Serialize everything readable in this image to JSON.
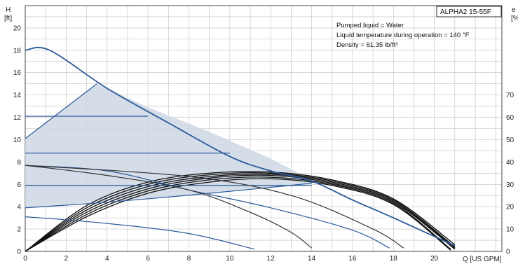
{
  "chart_data": {
    "type": "line",
    "model": "ALPHA2 15-55F",
    "notes": [
      "Pumped liquid = Water",
      "Liquid temperature during operation = 140 °F",
      "Density = 61.35 lb/ft³"
    ],
    "y_left": {
      "label_top": "H",
      "label_unit": "[ft]",
      "range": [
        0,
        22
      ],
      "ticks": [
        0,
        2,
        4,
        6,
        8,
        10,
        12,
        14,
        16,
        18,
        20
      ]
    },
    "y_right": {
      "label_top": "e",
      "label_unit": "[%]",
      "range": [
        0,
        110
      ],
      "ticks": [
        0,
        10,
        20,
        30,
        40,
        50,
        60,
        70
      ]
    },
    "x": {
      "label": "Q [US GPM]",
      "range": [
        0,
        23.3
      ],
      "ticks": [
        0,
        2,
        4,
        6,
        8,
        10,
        12,
        14,
        16,
        18,
        20
      ]
    },
    "grid": true,
    "shaded_region": [
      [
        0,
        10.1
      ],
      [
        3.5,
        15.0
      ],
      [
        6,
        12.9
      ],
      [
        9,
        10.7
      ],
      [
        12,
        8.3
      ],
      [
        14,
        6.4
      ],
      [
        14,
        6.0
      ],
      [
        9,
        5.2
      ],
      [
        4,
        4.5
      ],
      [
        0,
        3.9
      ]
    ],
    "head_curves": [
      {
        "points": [
          [
            0,
            18.0
          ],
          [
            1.2,
            18.0
          ],
          [
            4,
            14.6
          ],
          [
            7,
            11.5
          ],
          [
            10,
            8.5
          ],
          [
            12,
            7.2
          ],
          [
            14,
            6.3
          ],
          [
            16,
            4.6
          ],
          [
            18,
            3.0
          ],
          [
            21,
            0.5
          ]
        ]
      },
      {
        "points": [
          [
            0,
            10.1
          ],
          [
            3.5,
            15.0
          ]
        ]
      },
      {
        "points": [
          [
            0,
            7.7
          ],
          [
            4,
            7.2
          ],
          [
            8,
            5.5
          ],
          [
            12,
            3.9
          ],
          [
            16,
            1.9
          ],
          [
            17.8,
            0.3
          ]
        ]
      },
      {
        "points": [
          [
            0,
            3.1
          ],
          [
            4,
            2.5
          ],
          [
            8,
            1.6
          ],
          [
            11.2,
            0.2
          ]
        ]
      },
      {
        "points": [
          [
            0,
            12.1
          ],
          [
            6,
            12.1
          ]
        ]
      },
      {
        "points": [
          [
            0,
            8.8
          ],
          [
            10,
            8.8
          ]
        ]
      },
      {
        "points": [
          [
            0,
            5.9
          ],
          [
            14,
            5.9
          ]
        ]
      },
      {
        "points": [
          [
            0,
            3.9
          ],
          [
            4,
            4.4
          ],
          [
            9,
            5.2
          ],
          [
            14,
            6.1
          ]
        ]
      },
      {
        "points": [
          [
            0,
            7.7
          ],
          [
            4,
            6.8
          ],
          [
            8,
            5.5
          ],
          [
            11,
            3.5
          ],
          [
            13,
            1.7
          ],
          [
            14,
            0.3
          ]
        ]
      },
      {
        "points": [
          [
            0,
            7.7
          ],
          [
            8,
            6.7
          ],
          [
            13,
            5.0
          ],
          [
            17,
            2.0
          ],
          [
            18.5,
            0.3
          ]
        ]
      }
    ],
    "efficiency_curves": [
      {
        "points": [
          [
            0,
            0
          ],
          [
            3,
            20.5
          ],
          [
            6,
            31
          ],
          [
            9,
            35
          ],
          [
            12,
            35.5
          ],
          [
            15,
            32
          ],
          [
            18,
            23.5
          ],
          [
            21,
            3
          ]
        ]
      },
      {
        "points": [
          [
            0,
            0
          ],
          [
            3,
            19.5
          ],
          [
            6,
            30
          ],
          [
            9,
            34.3
          ],
          [
            12,
            35.0
          ],
          [
            15,
            31.5
          ],
          [
            18,
            23
          ],
          [
            21,
            2
          ]
        ]
      },
      {
        "points": [
          [
            0,
            0
          ],
          [
            3,
            18.5
          ],
          [
            6,
            29
          ],
          [
            9,
            33.5
          ],
          [
            12,
            34.5
          ],
          [
            15,
            31
          ],
          [
            18,
            22.5
          ],
          [
            21,
            1.5
          ]
        ]
      },
      {
        "points": [
          [
            0,
            0
          ],
          [
            3,
            17.5
          ],
          [
            6,
            28
          ],
          [
            9,
            32.8
          ],
          [
            12,
            34.0
          ],
          [
            15,
            30.5
          ],
          [
            18,
            22
          ],
          [
            21,
            1
          ]
        ]
      },
      {
        "points": [
          [
            0,
            0
          ],
          [
            3,
            16.5
          ],
          [
            6,
            27
          ],
          [
            9,
            32
          ],
          [
            12,
            33.2
          ],
          [
            15,
            30
          ],
          [
            18,
            21.5
          ],
          [
            20.8,
            1
          ]
        ]
      },
      {
        "points": [
          [
            0,
            0
          ],
          [
            3,
            15.5
          ],
          [
            6,
            26
          ],
          [
            9,
            31
          ],
          [
            12,
            32.5
          ],
          [
            15,
            29.5
          ],
          [
            18,
            21
          ],
          [
            20.8,
            0.5
          ]
        ]
      }
    ],
    "colors": {
      "head": "#2a5a9a",
      "efficiency": "#111111",
      "fill": "#ccd7e4",
      "grid": "#bfbfbf"
    }
  }
}
